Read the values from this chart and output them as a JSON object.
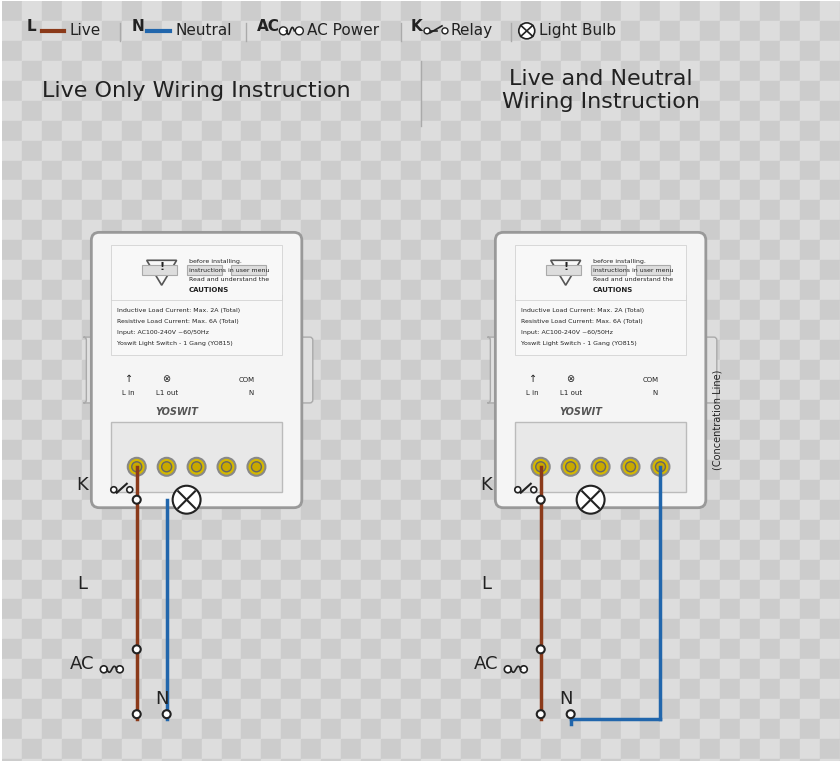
{
  "bg_color": "#d0d0d0",
  "checker_color1": "#c8c8c8",
  "checker_color2": "#d8d8d8",
  "white": "#ffffff",
  "live_color": "#8B3A1A",
  "neutral_color": "#2166AC",
  "dark_color": "#222222",
  "gray_color": "#888888",
  "light_gray": "#e8e8e8",
  "device_fill": "#f0f0f0",
  "device_stroke": "#aaaaaa",
  "title1": "Live Only Wiring Instruction",
  "title2": "Live and Neutral\nWiring Instruction",
  "legend_L": "L",
  "legend_N": "N",
  "legend_AC": "AC",
  "legend_K": "K",
  "legend_live": "Live",
  "legend_neutral": "Neutral",
  "legend_ac_power": "AC Power",
  "legend_relay": "Relay",
  "legend_bulb": "Light Bulb",
  "side_label": "(Concentration Line)",
  "font_size_title": 16,
  "font_size_legend": 11,
  "font_size_label": 13
}
